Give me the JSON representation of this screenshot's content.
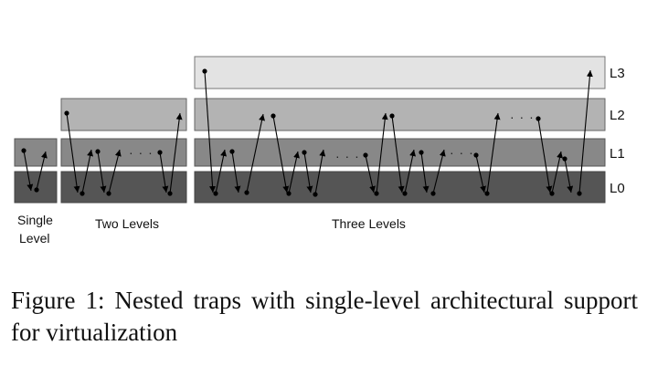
{
  "level_labels": {
    "l3": "L3",
    "l2": "L2",
    "l1": "L1",
    "l0": "L0"
  },
  "group_labels": {
    "single_line1": "Single",
    "single_line2": "Level",
    "two": "Two Levels",
    "three": "Three Levels"
  },
  "ellipsis": "· · ·",
  "colors": {
    "l0": "#555555",
    "l1": "#888888",
    "l2": "#b3b3b3",
    "l3": "#e3e3e3"
  },
  "caption": "Figure 1:  Nested traps with single-level architectural support for virtualization"
}
